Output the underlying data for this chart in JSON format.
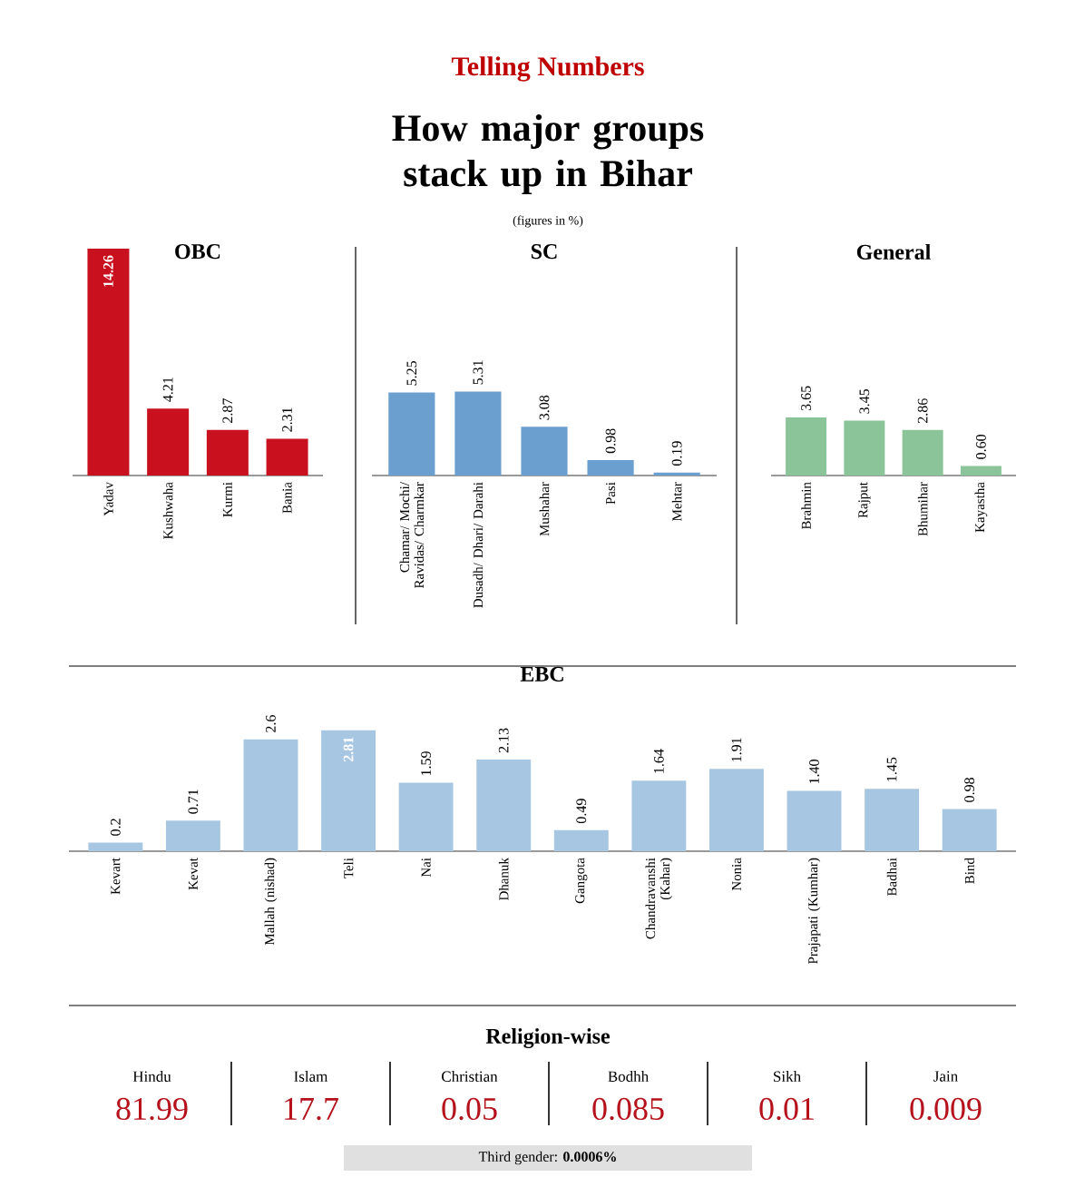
{
  "chart_data": [
    {
      "type": "other",
      "title": "How major groups stack up in Bihar",
      "subtitle": "(figures in %)",
      "annotations": [
        "Telling Numbers"
      ]
    },
    {
      "type": "bar",
      "title": "OBC",
      "categories": [
        "Yadav",
        "Kushwaha",
        "Kurmi",
        "Bania"
      ],
      "values": [
        14.26,
        4.21,
        2.87,
        2.31
      ],
      "value_labels": [
        "14.26",
        "4.21",
        "2.87",
        "2.31"
      ],
      "color": "#c8101e"
    },
    {
      "type": "bar",
      "title": "SC",
      "categories": [
        "Chamar/ Mochi/ Ravidas/ Charmkar",
        "Dusadh/ Dhari/ Darahi",
        "Mushahar",
        "Pasi",
        "Mehtar"
      ],
      "values": [
        5.25,
        5.31,
        3.08,
        0.98,
        0.19
      ],
      "value_labels": [
        "5.25",
        "5.31",
        "3.08",
        "0.98",
        "0.19"
      ],
      "color": "#6a9fcf"
    },
    {
      "type": "bar",
      "title": "General",
      "categories": [
        "Brahmin",
        "Rajput",
        "Bhumihar",
        "Kayastha"
      ],
      "values": [
        3.65,
        3.45,
        2.86,
        0.6
      ],
      "value_labels": [
        "3.65",
        "3.45",
        "2.86",
        "0.60"
      ],
      "color": "#8cc49a"
    },
    {
      "type": "bar",
      "title": "EBC",
      "categories": [
        "Kevart",
        "Kevat",
        "Mallah (nishad)",
        "Teli",
        "Nai",
        "Dhanuk",
        "Gangota",
        "Chandravanshi (Kahar)",
        "Nonia",
        "Prajapati (Kumhar)",
        "Badhai",
        "Bind"
      ],
      "values": [
        0.2,
        0.71,
        2.6,
        2.81,
        1.59,
        2.13,
        0.49,
        1.64,
        1.91,
        1.4,
        1.45,
        0.98
      ],
      "value_labels": [
        "0.2",
        "0.71",
        "2.6",
        "2.81",
        "1.59",
        "2.13",
        "0.49",
        "1.64",
        "1.91",
        "1.40",
        "1.45",
        "0.98"
      ],
      "color": "#a7c6e2"
    },
    {
      "type": "other",
      "title": "Religion-wise",
      "categories": [
        "Hindu",
        "Islam",
        "Christian",
        "Bodhh",
        "Sikh",
        "Jain"
      ],
      "values": [
        81.99,
        17.7,
        0.05,
        0.085,
        0.01,
        0.009
      ],
      "value_labels": [
        "81.99",
        "17.7",
        "0.05",
        "0.085",
        "0.01",
        "0.009"
      ],
      "color": "#b5121b",
      "annotations": [
        "Third gender: **0.0006%**"
      ]
    }
  ]
}
